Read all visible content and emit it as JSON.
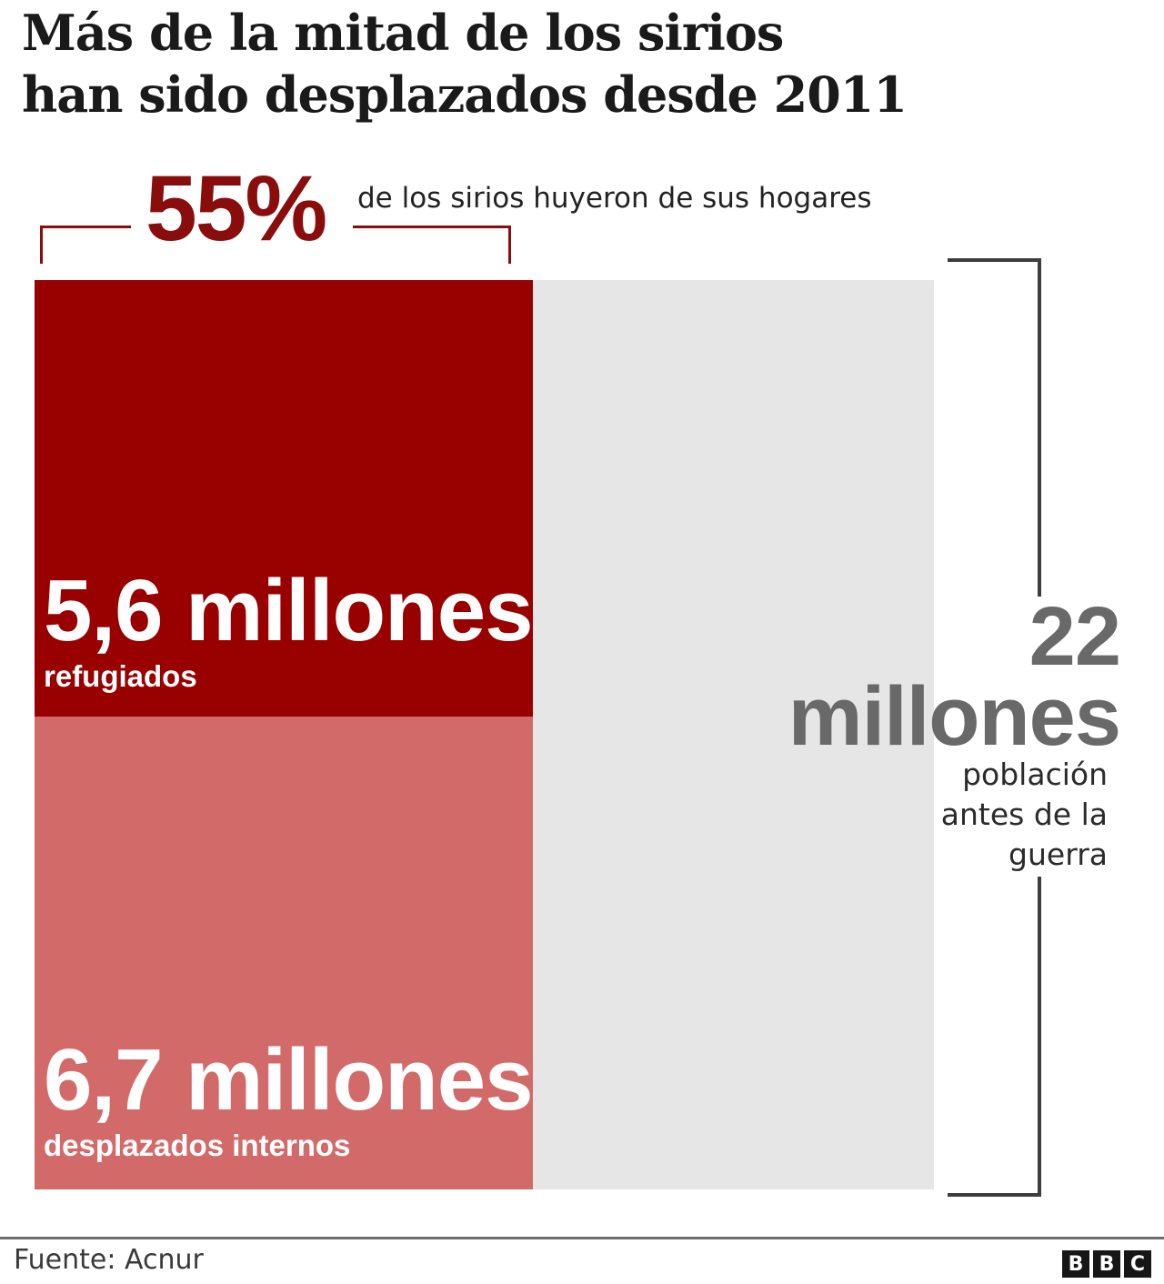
{
  "title": {
    "line1": "Más de la mitad de los sirios",
    "line2": "han sido desplazados desde 2011"
  },
  "highlight": {
    "pct_label": "55%",
    "caption": "de los sirios huyeron de sus hogares"
  },
  "chart_data": {
    "type": "bar",
    "title": "Más de la mitad de los sirios han sido desplazados desde 2011",
    "unit": "millones de personas",
    "categories": [
      "refugiados",
      "desplazados internos"
    ],
    "values": [
      5.6,
      6.7
    ],
    "displaced_share_pct": 55,
    "total_population_millions": 22,
    "series": [
      {
        "name": "refugiados",
        "value": 5.6,
        "label": "5,6 millones",
        "color": "#990000",
        "height_pct": 48
      },
      {
        "name": "desplazados internos",
        "value": 6.7,
        "label": "6,7 millones",
        "color": "#d36a6a",
        "height_pct": 52
      }
    ],
    "displaced_width_pct": 55.4,
    "remainder_color": "#e6e6e6",
    "total": {
      "number_label": "22",
      "unit_label": "millones",
      "caption_lines": [
        "población",
        "antes de la",
        "guerra"
      ]
    },
    "legend_position": "none",
    "grid": false
  },
  "colors": {
    "accent_dark_red": "#8a0d0d",
    "bracket_gray": "#3d3d3d",
    "title_color": "#1a1a1a",
    "total_gray": "#696969"
  },
  "footer": {
    "source": "Fuente: Acnur",
    "logo_letters": [
      "B",
      "B",
      "C"
    ]
  }
}
